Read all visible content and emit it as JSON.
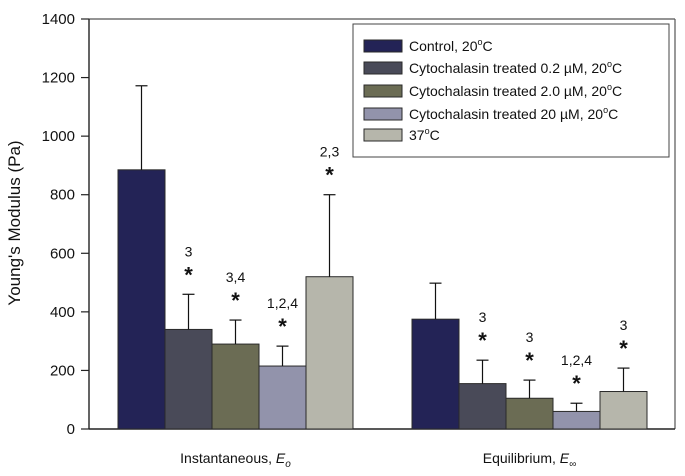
{
  "chart_data": {
    "type": "bar",
    "title": "",
    "xlabel": "",
    "ylabel": "Young's Modulus (Pa)",
    "ylim": [
      0,
      1400
    ],
    "yticks": [
      0,
      200,
      400,
      600,
      800,
      1000,
      1200,
      1400
    ],
    "grid": false,
    "legend_position": "top-right",
    "categories": [
      {
        "label": "Instantaneous, ",
        "symbol": "E",
        "subscript": "o"
      },
      {
        "label": "Equilibrium, ",
        "symbol": "E",
        "subscript": "∞"
      }
    ],
    "series": [
      {
        "name": "Control, 20°C",
        "legend": {
          "text": "Control, 20",
          "sup": "o",
          "tail": "C"
        },
        "color": "#232356",
        "values": [
          885,
          375
        ],
        "errors": [
          287,
          123
        ],
        "annotations": [
          "",
          ""
        ]
      },
      {
        "name": "Cytochalasin treated 0.2 µM, 20°C",
        "legend": {
          "text": "Cytochalasin treated 0.2 µM, 20",
          "sup": "o",
          "tail": "C"
        },
        "color": "#494a58",
        "values": [
          340,
          155
        ],
        "errors": [
          120,
          80
        ],
        "annotations": [
          "3",
          "3"
        ]
      },
      {
        "name": "Cytochalasin treated 2.0 µM, 20°C",
        "legend": {
          "text": "Cytochalasin treated 2.0 µM, 20",
          "sup": "o",
          "tail": "C"
        },
        "color": "#6b6c54",
        "values": [
          290,
          105
        ],
        "errors": [
          82,
          62
        ],
        "annotations": [
          "3,4",
          "3"
        ]
      },
      {
        "name": "Cytochalasin treated 20 µM, 20°C",
        "legend": {
          "text": "Cytochalasin treated 20 µM, 20",
          "sup": "o",
          "tail": "C"
        },
        "color": "#9293ab",
        "values": [
          215,
          60
        ],
        "errors": [
          68,
          28
        ],
        "annotations": [
          "1,2,4",
          "1,2,4"
        ]
      },
      {
        "name": "37°C",
        "legend": {
          "text": "37",
          "sup": "o",
          "tail": "C"
        },
        "color": "#b6b6ab",
        "values": [
          520,
          128
        ],
        "errors": [
          280,
          80
        ],
        "annotations": [
          "2,3",
          "3"
        ]
      }
    ],
    "significance_marker": "*"
  }
}
